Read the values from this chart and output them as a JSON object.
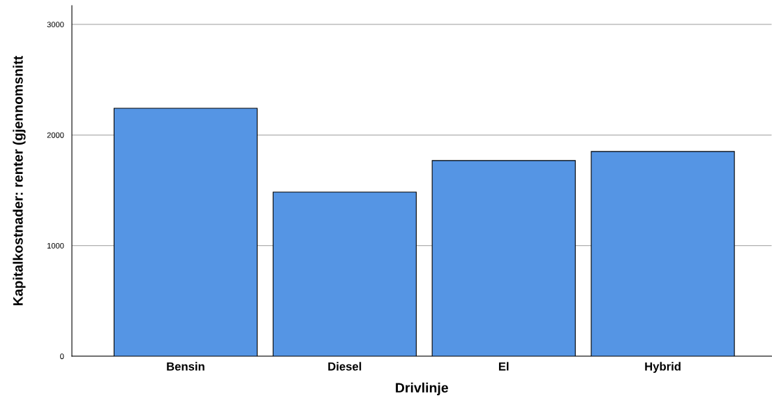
{
  "chart_data": {
    "type": "bar",
    "xlabel": "Drivlinje",
    "ylabel": "Kapitalkostnader: renter (gjennomsnitt",
    "categories": [
      "Bensin",
      "Diesel",
      "El",
      "Hybrid"
    ],
    "values": [
      2242,
      1484,
      1769,
      1851
    ],
    "color": "#5595e4",
    "ylim": [
      0,
      3170
    ],
    "yticks": [
      0,
      1000,
      2000,
      3000
    ],
    "grid": "y"
  }
}
